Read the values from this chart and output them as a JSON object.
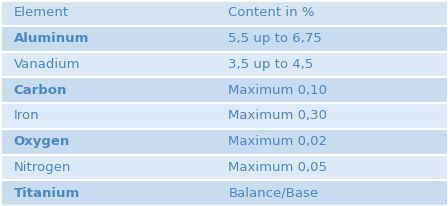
{
  "header": [
    "Element",
    "Content in %"
  ],
  "rows": [
    [
      "Aluminum",
      "5,5 up to 6,75",
      true,
      true
    ],
    [
      "Vanadium",
      "3,5 up to 4,5",
      false,
      false
    ],
    [
      "Carbon",
      "Maximum 0,10",
      true,
      true
    ],
    [
      "Iron",
      "Maximum 0,30",
      false,
      false
    ],
    [
      "Oxygen",
      "Maximum 0,02",
      true,
      true
    ],
    [
      "Nitrogen",
      "Maximum 0,05",
      false,
      false
    ],
    [
      "Titanium",
      "Balance/Base",
      true,
      true
    ]
  ],
  "header_bg": "#d6e4f0",
  "row_bg_dark": "#c9dced",
  "row_bg_light": "#ddeaf5",
  "border_color": "#ffffff",
  "text_color": "#4a86c8",
  "header_text_color": "#4a86c8",
  "bold_elements": [
    "Aluminum",
    "Carbon",
    "Oxygen",
    "Titanium"
  ],
  "col_split": 0.48,
  "figsize": [
    4.48,
    2.06
  ],
  "dpi": 100,
  "font_size": 9.5,
  "header_font_size": 9.5
}
